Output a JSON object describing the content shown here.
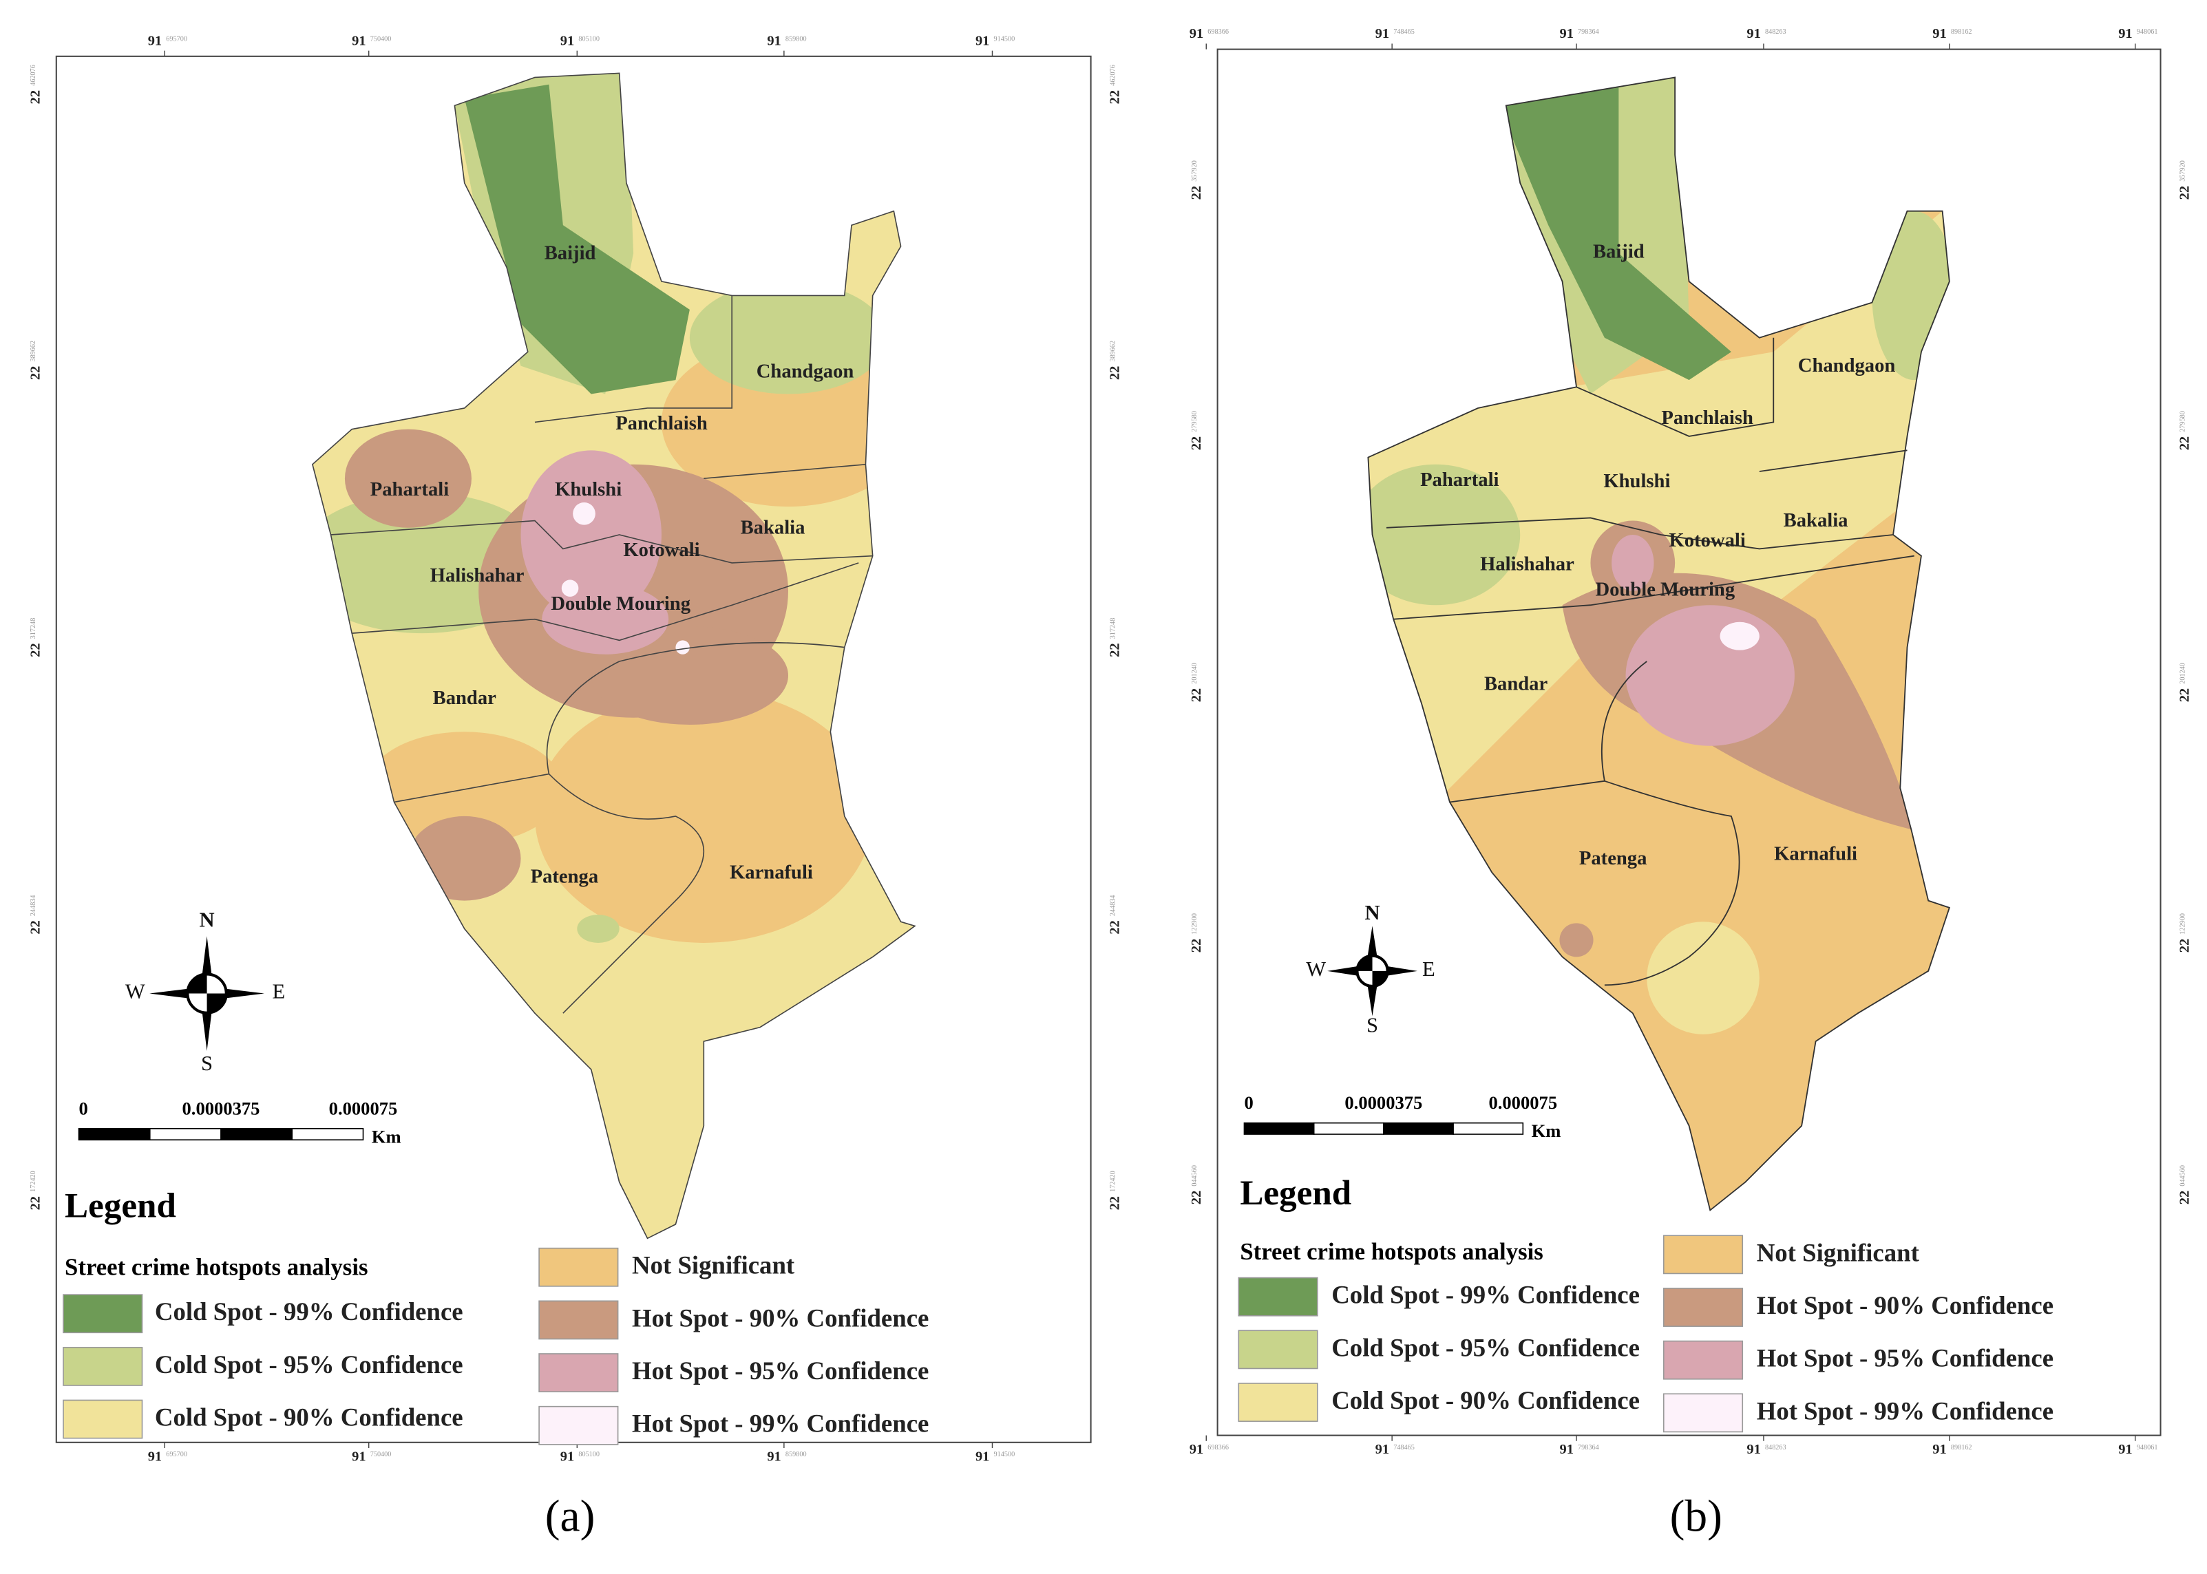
{
  "panels": [
    {
      "caption": "(a)",
      "top_ticks": [
        {
          "deg": "91",
          "sub": "695700"
        },
        {
          "deg": "91",
          "sub": "750400"
        },
        {
          "deg": "91",
          "sub": "805100"
        },
        {
          "deg": "91",
          "sub": "859800"
        },
        {
          "deg": "91",
          "sub": "914500"
        }
      ],
      "side_ticks": [
        {
          "deg": "22",
          "sub": "462076"
        },
        {
          "deg": "22",
          "sub": "389662"
        },
        {
          "deg": "22",
          "sub": "317248"
        },
        {
          "deg": "22",
          "sub": "244834"
        },
        {
          "deg": "22",
          "sub": "172420"
        }
      ],
      "districts": [
        "Baijid",
        "Chandgaon",
        "Panchlaish",
        "Pahartali",
        "Khulshi",
        "Bakalia",
        "Kotowali",
        "Halishahar",
        "Double Mouring",
        "Bandar",
        "Patenga",
        "Karnafuli"
      ],
      "compass": {
        "n": "N",
        "s": "S",
        "w": "W",
        "e": "E"
      },
      "scale": {
        "labels": [
          "0",
          "0.0000375",
          "0.000075"
        ],
        "unit": "Km"
      },
      "legend": {
        "title": "Legend",
        "subtitle": "Street crime hotspots analysis",
        "items": [
          {
            "label": "Cold Spot - 99% Confidence",
            "color": "#6e9b56"
          },
          {
            "label": "Cold Spot - 95% Confidence",
            "color": "#c8d48b"
          },
          {
            "label": "Cold Spot - 90% Confidence",
            "color": "#f1e39a"
          },
          {
            "label": "Not Significant",
            "color": "#f0c67d"
          },
          {
            "label": "Hot Spot - 90% Confidence",
            "color": "#c99a7f"
          },
          {
            "label": "Hot Spot - 95% Confidence",
            "color": "#d9a6b0"
          },
          {
            "label": "Hot Spot - 99% Confidence",
            "color": "#fdf2fa"
          }
        ]
      }
    },
    {
      "caption": "(b)",
      "top_ticks": [
        {
          "deg": "91",
          "sub": "698366"
        },
        {
          "deg": "91",
          "sub": "748465"
        },
        {
          "deg": "91",
          "sub": "798364"
        },
        {
          "deg": "91",
          "sub": "848263"
        },
        {
          "deg": "91",
          "sub": "898162"
        },
        {
          "deg": "91",
          "sub": "948061"
        }
      ],
      "side_ticks": [
        {
          "deg": "22",
          "sub": "357920"
        },
        {
          "deg": "22",
          "sub": "279580"
        },
        {
          "deg": "22",
          "sub": "201240"
        },
        {
          "deg": "22",
          "sub": "122900"
        },
        {
          "deg": "22",
          "sub": "044560"
        }
      ],
      "districts": [
        "Baijid",
        "Chandgaon",
        "Panchlaish",
        "Pahartali",
        "Khulshi",
        "Bakalia",
        "Kotowali",
        "Halishahar",
        "Double Mouring",
        "Bandar",
        "Patenga",
        "Karnafuli"
      ],
      "compass": {
        "n": "N",
        "s": "S",
        "w": "W",
        "e": "E"
      },
      "scale": {
        "labels": [
          "0",
          "0.0000375",
          "0.000075"
        ],
        "unit": "Km"
      },
      "legend": {
        "title": "Legend",
        "subtitle": "Street crime  hotspots analysis",
        "items": [
          {
            "label": "Cold Spot - 99% Confidence",
            "color": "#6e9b56"
          },
          {
            "label": "Cold Spot - 95% Confidence",
            "color": "#c8d48b"
          },
          {
            "label": "Cold Spot - 90% Confidence",
            "color": "#f1e39a"
          },
          {
            "label": "Not Significant",
            "color": "#f0c67d"
          },
          {
            "label": "Hot Spot - 90% Confidence",
            "color": "#c99a7f"
          },
          {
            "label": "Hot Spot - 95% Confidence",
            "color": "#d9a6b0"
          },
          {
            "label": "Hot Spot - 99% Confidence",
            "color": "#fdf2fa"
          }
        ]
      }
    }
  ]
}
